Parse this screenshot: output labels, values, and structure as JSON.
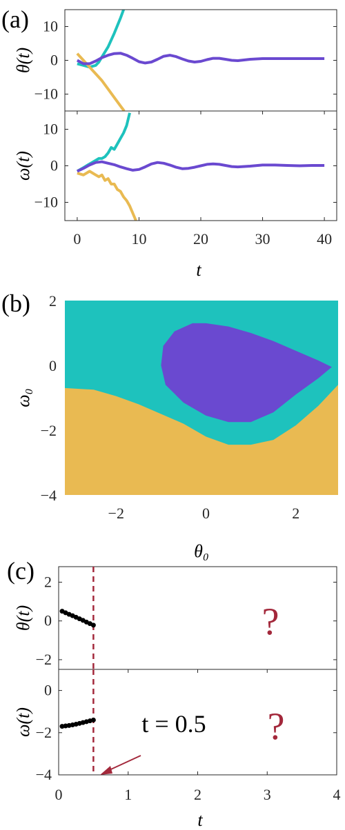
{
  "panels": {
    "a": "(a)",
    "b": "(b)",
    "c": "(c)"
  },
  "colors": {
    "teal": "#1ec2bd",
    "purple": "#6a49d0",
    "gold": "#e9ba52",
    "dark_red": "#a3283b",
    "black": "#000000"
  },
  "annotation": {
    "label": "t = 0.5",
    "question_mark": "?"
  },
  "chart_data": [
    {
      "id": "a-theta",
      "type": "line",
      "ylabel": "θ(t)",
      "xlim": [
        -2,
        42
      ],
      "ylim": [
        -15,
        15
      ],
      "yticks": [
        10,
        0,
        -10
      ],
      "xticks": [],
      "series": [
        {
          "color_key": "teal",
          "x": [
            0,
            1,
            2,
            3,
            3.5,
            4,
            5,
            6,
            7,
            7.5
          ],
          "y": [
            -1,
            -1.5,
            -2,
            -1.5,
            -0.5,
            1,
            4,
            8,
            12.5,
            15
          ]
        },
        {
          "color_key": "gold",
          "x": [
            0,
            1,
            2,
            3,
            4,
            5,
            6,
            7,
            7.6
          ],
          "y": [
            2,
            0,
            -2,
            -4,
            -6,
            -8.5,
            -11,
            -13.5,
            -15
          ]
        },
        {
          "color_key": "purple",
          "x": [
            0,
            1,
            2,
            3,
            4,
            5,
            6,
            7,
            8,
            9,
            10,
            11,
            12,
            13,
            14,
            15,
            16,
            17,
            18,
            19,
            20,
            21,
            22,
            23,
            24,
            25,
            26,
            28,
            30,
            32,
            34,
            36,
            38,
            40
          ],
          "y": [
            0,
            -1,
            -1,
            -0.2,
            0.8,
            1.5,
            2,
            2.1,
            1.5,
            0.6,
            -0.4,
            -0.8,
            -0.5,
            0.3,
            1.2,
            1.5,
            1.1,
            0.4,
            -0.2,
            -0.5,
            -0.3,
            0.2,
            0.6,
            0.6,
            0.3,
            0,
            -0.1,
            0.3,
            0.5,
            0.5,
            0.5,
            0.5,
            0.5,
            0.5
          ]
        }
      ]
    },
    {
      "id": "a-omega",
      "type": "line",
      "ylabel": "ω(t)",
      "xlabel": "t",
      "xlim": [
        -2,
        42
      ],
      "ylim": [
        -15,
        15
      ],
      "yticks": [
        10,
        0,
        -10
      ],
      "xticks": [
        0,
        10,
        20,
        30,
        40
      ],
      "series": [
        {
          "color_key": "teal",
          "x": [
            0,
            1,
            2,
            3,
            3.5,
            4,
            4.5,
            5,
            5.5,
            6,
            6.5,
            7,
            7.5,
            8,
            8.5
          ],
          "y": [
            -1.5,
            -0.5,
            0.5,
            1.5,
            2,
            2,
            2.5,
            3.5,
            5,
            4.5,
            6,
            7.5,
            9,
            11,
            14.5
          ]
        },
        {
          "color_key": "gold",
          "x": [
            0,
            1,
            2,
            3,
            3.5,
            4,
            4.5,
            5,
            5.5,
            6,
            6.5,
            7,
            7.5,
            8,
            8.5,
            9,
            9.5
          ],
          "y": [
            -2,
            -2.5,
            -1.5,
            -2.5,
            -3,
            -2.5,
            -4,
            -3.5,
            -5,
            -5,
            -6.5,
            -7,
            -8.5,
            -9.5,
            -11,
            -13,
            -15
          ]
        },
        {
          "color_key": "purple",
          "x": [
            0,
            1,
            2,
            3,
            4,
            5,
            6,
            7,
            8,
            9,
            10,
            11,
            12,
            13,
            14,
            15,
            16,
            17,
            18,
            19,
            20,
            21,
            22,
            23,
            24,
            25,
            26,
            28,
            30,
            32,
            34,
            36,
            38,
            40
          ],
          "y": [
            -1.5,
            -0.7,
            0.2,
            0.9,
            1.1,
            0.7,
            0.3,
            -0.3,
            -0.8,
            -1.2,
            -1,
            -0.3,
            0.5,
            0.9,
            0.7,
            0.2,
            -0.4,
            -0.8,
            -0.7,
            -0.4,
            0,
            0.4,
            0.5,
            0.4,
            0.1,
            -0.2,
            -0.3,
            -0.1,
            0.2,
            0.2,
            0.1,
            0,
            0.1,
            0.1
          ]
        }
      ]
    },
    {
      "id": "b",
      "type": "heatmap",
      "xlabel": "θ₀",
      "ylabel": "ω₀",
      "xlim": [
        -3.14,
        2.94
      ],
      "ylim": [
        -4,
        2
      ],
      "xticks": [
        -2,
        0,
        2
      ],
      "yticks": [
        2,
        0,
        -2,
        -4
      ],
      "regions": [
        {
          "color_key": "teal",
          "description": "background"
        },
        {
          "color_key": "gold",
          "boundary_x": [
            -3.14,
            -2.5,
            -2,
            -1.5,
            -1,
            -0.5,
            0,
            0.5,
            1,
            1.5,
            2,
            2.5,
            2.94
          ],
          "boundary_y": [
            -0.7,
            -0.75,
            -0.95,
            -1.2,
            -1.5,
            -1.8,
            -2.2,
            -2.45,
            -2.45,
            -2.3,
            -1.85,
            -1.25,
            -0.6
          ]
        },
        {
          "color_key": "purple",
          "outline_x": [
            -1,
            -0.95,
            -0.7,
            -0.3,
            0,
            0.5,
            1,
            1.5,
            2,
            2.5,
            2.8,
            2.5,
            2,
            1.5,
            1,
            0.5,
            0,
            -0.5,
            -0.9,
            -1
          ],
          "outline_y": [
            0,
            0.6,
            1.05,
            1.3,
            1.3,
            1.2,
            1.0,
            0.75,
            0.45,
            0.15,
            -0.05,
            -0.4,
            -0.9,
            -1.45,
            -1.75,
            -1.75,
            -1.55,
            -1.15,
            -0.6,
            0
          ]
        }
      ]
    },
    {
      "id": "c-theta",
      "type": "scatter",
      "ylabel": "θ(t)",
      "xlim": [
        0,
        4
      ],
      "ylim": [
        -2.5,
        2.8
      ],
      "yticks": [
        2,
        0,
        -2
      ],
      "xticks": [],
      "vline": {
        "x": 0.5,
        "color_key": "dark_red"
      },
      "series": [
        {
          "color_key": "black",
          "x": [
            0.05,
            0.1,
            0.15,
            0.2,
            0.25,
            0.3,
            0.35,
            0.4,
            0.45,
            0.5
          ],
          "y": [
            0.5,
            0.42,
            0.34,
            0.27,
            0.19,
            0.11,
            0.03,
            -0.06,
            -0.14,
            -0.22
          ]
        }
      ]
    },
    {
      "id": "c-omega",
      "type": "scatter",
      "ylabel": "ω(t)",
      "xlabel": "t",
      "xlim": [
        0,
        4
      ],
      "ylim": [
        -4,
        1
      ],
      "yticks": [
        0,
        -2,
        -4
      ],
      "xticks": [
        0,
        1,
        2,
        3,
        4
      ],
      "vline": {
        "x": 0.5,
        "color_key": "dark_red"
      },
      "series": [
        {
          "color_key": "black",
          "x": [
            0.05,
            0.1,
            0.15,
            0.2,
            0.25,
            0.3,
            0.35,
            0.4,
            0.45,
            0.5
          ],
          "y": [
            -1.7,
            -1.68,
            -1.66,
            -1.63,
            -1.6,
            -1.56,
            -1.52,
            -1.48,
            -1.44,
            -1.4
          ]
        }
      ]
    }
  ]
}
